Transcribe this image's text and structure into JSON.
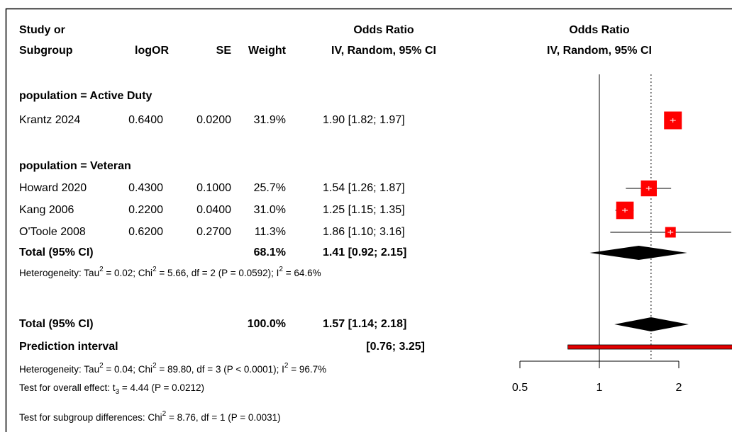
{
  "chart_data": {
    "type": "forest",
    "headers": {
      "study": [
        "Study or",
        "Subgroup"
      ],
      "logor": "logOR",
      "se": "SE",
      "weight": "Weight",
      "ci": [
        "Odds Ratio",
        "IV, Random, 95% CI"
      ],
      "plot": [
        "Odds Ratio",
        "IV, Random, 95% CI"
      ]
    },
    "subgroups": [
      {
        "label": "population = Active Duty",
        "studies": [
          {
            "name": "Krantz 2024",
            "logor": "0.6400",
            "se": "0.0200",
            "weight": 31.9,
            "weight_label": "31.9%",
            "or": 1.9,
            "lower": 1.82,
            "upper": 1.97,
            "ci_label": "1.90 [1.82; 1.97]"
          }
        ]
      },
      {
        "label": "population = Veteran",
        "studies": [
          {
            "name": "Howard 2020",
            "logor": "0.4300",
            "se": "0.1000",
            "weight": 25.7,
            "weight_label": "25.7%",
            "or": 1.54,
            "lower": 1.26,
            "upper": 1.87,
            "ci_label": "1.54 [1.26; 1.87]"
          },
          {
            "name": "Kang 2006",
            "logor": "0.2200",
            "se": "0.0400",
            "weight": 31.0,
            "weight_label": "31.0%",
            "or": 1.25,
            "lower": 1.15,
            "upper": 1.35,
            "ci_label": "1.25 [1.15; 1.35]"
          },
          {
            "name": "O'Toole 2008",
            "logor": "0.6200",
            "se": "0.2700",
            "weight": 11.3,
            "weight_label": "11.3%",
            "or": 1.86,
            "lower": 1.1,
            "upper": 3.16,
            "ci_label": "1.86 [1.10; 3.16]"
          }
        ],
        "total": {
          "name": "Total (95% CI)",
          "weight": 68.1,
          "weight_label": "68.1%",
          "or": 1.41,
          "lower": 0.92,
          "upper": 2.15,
          "ci_label": "1.41 [0.92; 2.15]"
        },
        "heterogeneity": [
          "Heterogeneity: Tau",
          "2",
          " = 0.02; Chi",
          "2",
          " = 5.66, df = 2 (P = 0.0592); I",
          "2",
          " = 64.6%"
        ]
      }
    ],
    "total": {
      "name": "Total (95% CI)",
      "weight": 100.0,
      "weight_label": "100.0%",
      "or": 1.57,
      "lower": 1.14,
      "upper": 2.18,
      "ci_label": "1.57 [1.14; 2.18]"
    },
    "prediction": {
      "name": "Prediction interval",
      "lower": 0.76,
      "upper": 3.25,
      "ci_label": "[0.76; 3.25]"
    },
    "heterogeneity": [
      "Heterogeneity: Tau",
      "2",
      " = 0.04; Chi",
      "2",
      " = 89.80, df = 3 (P < 0.0001); I",
      "2",
      " = 96.7%"
    ],
    "overall_test": [
      "Test for overall effect: t",
      "3",
      " = 4.44 (P = 0.0212)"
    ],
    "subgroup_test": [
      "Test for subgroup differences: Chi",
      "2",
      " = 8.76, df = 1 (P = 0.0031)"
    ],
    "x_log": true,
    "xlim": [
      0.5,
      2
    ],
    "xticks": [
      0.5,
      1,
      2
    ],
    "null_line": 1,
    "box_color": "#ff0000",
    "prediction_color": "#e00000"
  }
}
